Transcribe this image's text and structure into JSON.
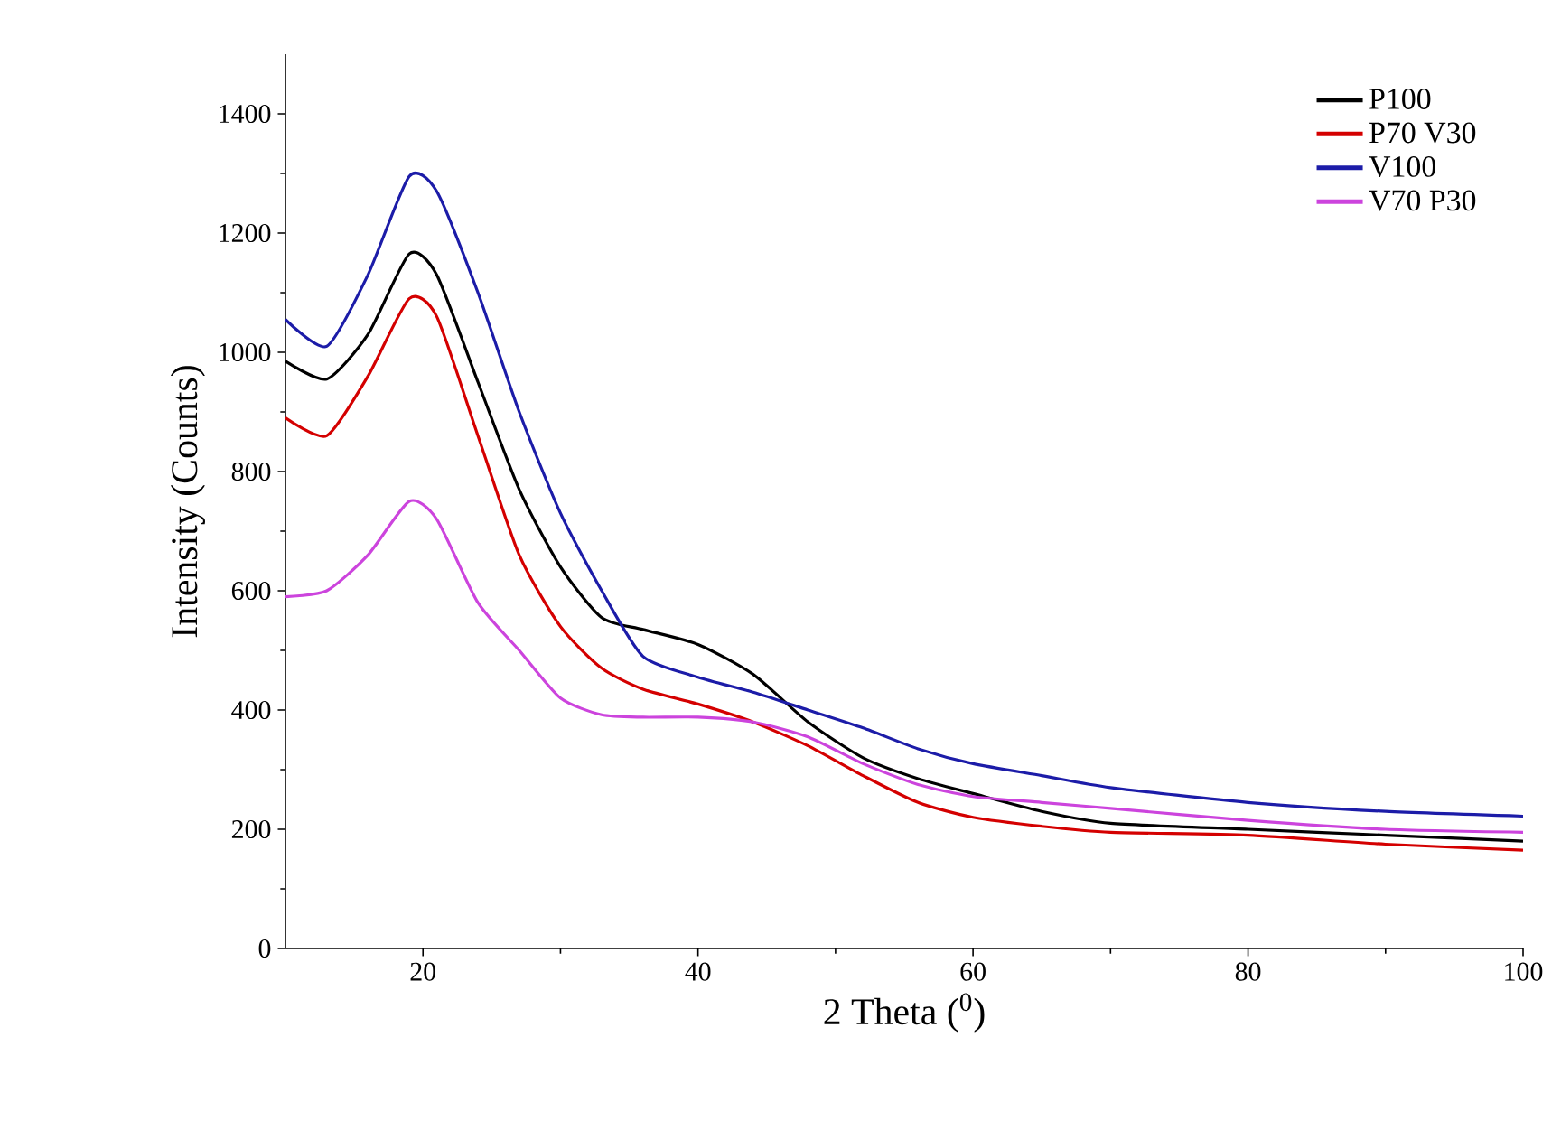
{
  "chart_data": {
    "type": "line",
    "xlabel": "2 Theta ($^{0}$)",
    "ylabel": "Intensity (Counts)",
    "xlim": [
      10,
      100
    ],
    "ylim": [
      0,
      1500
    ],
    "xticks": [
      20,
      40,
      60,
      80,
      100
    ],
    "yticks": [
      0,
      200,
      400,
      600,
      800,
      1000,
      1200,
      1400
    ],
    "grid": false,
    "legend": "top right",
    "x": [
      10,
      13,
      16,
      19,
      21,
      24,
      27,
      30,
      33,
      36,
      40,
      44,
      48,
      52,
      56,
      60,
      65,
      70,
      80,
      90,
      100
    ],
    "series": [
      {
        "name": "P100",
        "color": "#000000",
        "values": [
          985,
          955,
          1030,
          1165,
          1130,
          950,
          770,
          640,
          555,
          535,
          510,
          460,
          380,
          320,
          285,
          260,
          230,
          210,
          200,
          190,
          180
        ]
      },
      {
        "name": "P70 V30",
        "color": "#d40000",
        "values": [
          890,
          860,
          960,
          1090,
          1060,
          860,
          660,
          540,
          470,
          435,
          410,
          380,
          340,
          290,
          245,
          220,
          205,
          195,
          190,
          175,
          165
        ]
      },
      {
        "name": "V100",
        "color": "#1c1ca8",
        "values": [
          1055,
          1010,
          1130,
          1295,
          1270,
          1100,
          900,
          730,
          600,
          490,
          455,
          430,
          400,
          370,
          335,
          310,
          290,
          270,
          245,
          230,
          222
        ]
      },
      {
        "name": "V70 P30",
        "color": "#cc44dd",
        "values": [
          590,
          600,
          660,
          750,
          720,
          580,
          500,
          420,
          392,
          388,
          388,
          380,
          355,
          310,
          275,
          255,
          245,
          235,
          215,
          200,
          195
        ]
      }
    ]
  }
}
